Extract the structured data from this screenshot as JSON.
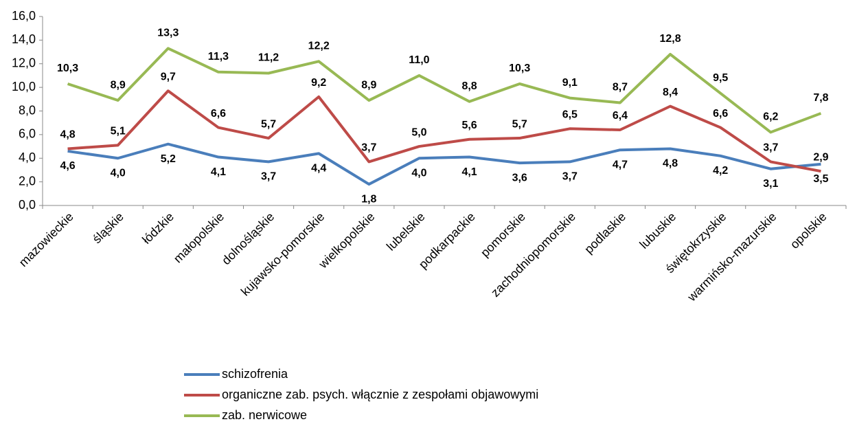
{
  "chart_data": {
    "type": "line",
    "categories": [
      "mazowieckie",
      "śląskie",
      "łódzkie",
      "małopolskie",
      "dolnośląskie",
      "kujawsko-pomorskie",
      "wielkopolskie",
      "lubelskie",
      "podkarpackie",
      "pomorskie",
      "zachodniopomorskie",
      "podlaskie",
      "lubuskie",
      "świętokrzyskie",
      "warmińsko-mazurskie",
      "opolskie"
    ],
    "series": [
      {
        "name": "schizofrenia",
        "color": "#4a7ebb",
        "values": [
          4.6,
          4.0,
          5.2,
          4.1,
          3.7,
          4.4,
          1.8,
          4.0,
          4.1,
          3.6,
          3.7,
          4.7,
          4.8,
          4.2,
          3.1,
          3.5
        ],
        "value_labels": [
          "4,6",
          "4,0",
          "5,2",
          "4,1",
          "3,7",
          "4,4",
          "1,8",
          "4,0",
          "4,1",
          "3,6",
          "3,7",
          "4,7",
          "4,8",
          "4,2",
          "3,1",
          "3,5"
        ]
      },
      {
        "name": "organiczne zab. psych. włącznie z zespołami objawowymi",
        "color": "#be4b48",
        "values": [
          4.8,
          5.1,
          9.7,
          6.6,
          5.7,
          9.2,
          3.7,
          5.0,
          5.6,
          5.7,
          6.5,
          6.4,
          8.4,
          6.6,
          3.7,
          2.9
        ],
        "value_labels": [
          "4,8",
          "5,1",
          "9,7",
          "6,6",
          "5,7",
          "9,2",
          "3,7",
          "5,0",
          "5,6",
          "5,7",
          "6,5",
          "6,4",
          "8,4",
          "6,6",
          "3,7",
          "2,9"
        ]
      },
      {
        "name": "zab. nerwicowe",
        "color": "#98b954",
        "values": [
          10.3,
          8.9,
          13.3,
          11.3,
          11.2,
          12.2,
          8.9,
          11.0,
          8.8,
          10.3,
          9.1,
          8.7,
          12.8,
          9.5,
          6.2,
          7.8
        ],
        "value_labels": [
          "10,3",
          "8,9",
          "13,3",
          "11,3",
          "11,2",
          "12,2",
          "8,9",
          "11,0",
          "8,8",
          "10,3",
          "9,1",
          "8,7",
          "12,8",
          "9,5",
          "6,2",
          "7,8"
        ]
      }
    ],
    "ylim": [
      0,
      16
    ],
    "yticks": [
      {
        "value": 0,
        "label": "0,0"
      },
      {
        "value": 2,
        "label": "2,0"
      },
      {
        "value": 4,
        "label": "4,0"
      },
      {
        "value": 6,
        "label": "6,0"
      },
      {
        "value": 8,
        "label": "8,0"
      },
      {
        "value": 10,
        "label": "10,0"
      },
      {
        "value": 12,
        "label": "12,0"
      },
      {
        "value": 14,
        "label": "14,0"
      },
      {
        "value": 16,
        "label": "16,0"
      }
    ],
    "grid": false
  }
}
